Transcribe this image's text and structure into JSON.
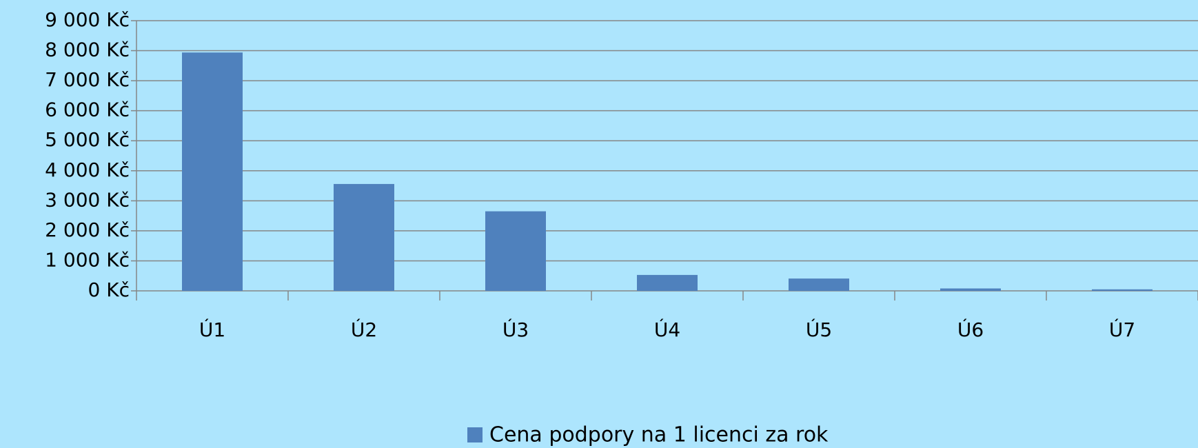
{
  "chart_data": {
    "type": "bar",
    "categories": [
      "Ú1",
      "Ú2",
      "Ú3",
      "Ú4",
      "Ú5",
      "Ú6",
      "Ú7"
    ],
    "series": [
      {
        "name": "Cena podpory na 1 licenci za rok",
        "color": "#4f81bd",
        "values": [
          7940,
          3560,
          2650,
          530,
          410,
          80,
          50
        ]
      }
    ],
    "ylim": [
      0,
      9000
    ],
    "yticks": [
      {
        "value": 0,
        "label": "0 Kč"
      },
      {
        "value": 1000,
        "label": "1 000 Kč"
      },
      {
        "value": 2000,
        "label": "2 000 Kč"
      },
      {
        "value": 3000,
        "label": "3 000 Kč"
      },
      {
        "value": 4000,
        "label": "4 000 Kč"
      },
      {
        "value": 5000,
        "label": "5 000 Kč"
      },
      {
        "value": 6000,
        "label": "6 000 Kč"
      },
      {
        "value": 7000,
        "label": "7 000 Kč"
      },
      {
        "value": 8000,
        "label": "8 000 Kč"
      },
      {
        "value": 9000,
        "label": "9 000 Kč"
      }
    ],
    "grid": true,
    "legend": "bottom"
  }
}
